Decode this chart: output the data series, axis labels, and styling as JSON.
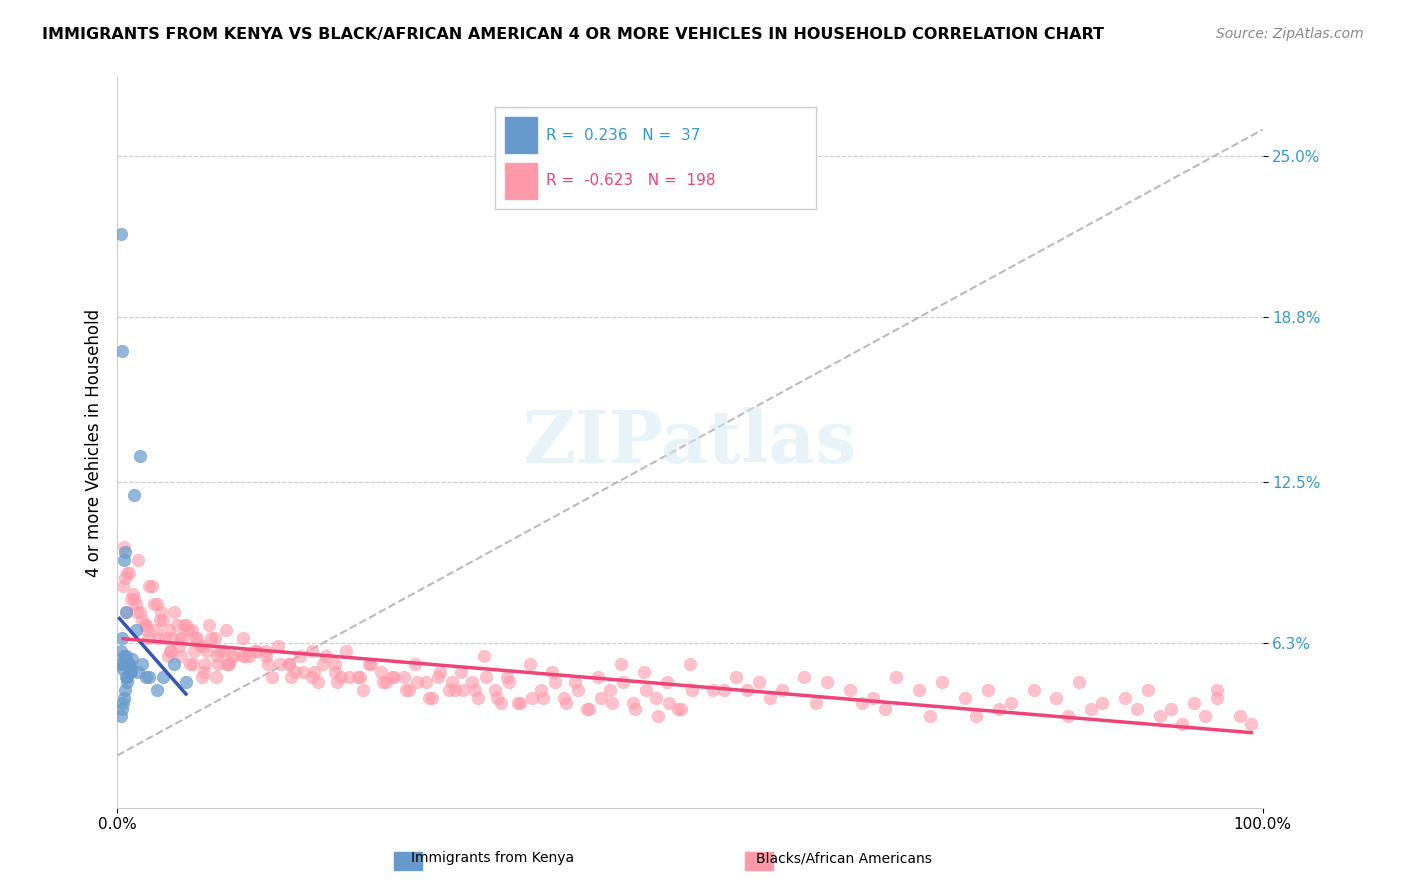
{
  "title": "IMMIGRANTS FROM KENYA VS BLACK/AFRICAN AMERICAN 4 OR MORE VEHICLES IN HOUSEHOLD CORRELATION CHART",
  "source": "Source: ZipAtlas.com",
  "ylabel": "4 or more Vehicles in Household",
  "xlabel": "",
  "xlim": [
    0,
    100
  ],
  "ylim": [
    0,
    28
  ],
  "yticks": [
    0,
    6.3,
    12.5,
    18.8,
    25.0
  ],
  "ytick_labels": [
    "",
    "6.3%",
    "12.5%",
    "18.8%",
    "25.0%"
  ],
  "xtick_labels": [
    "0.0%",
    "100.0%"
  ],
  "blue_R": 0.236,
  "blue_N": 37,
  "pink_R": -0.623,
  "pink_N": 198,
  "blue_color": "#6699CC",
  "pink_color": "#FF99AA",
  "blue_line_color": "#3355BB",
  "pink_line_color": "#EE4477",
  "gray_line_color": "#BBBBBB",
  "watermark": "ZIPatlas",
  "background_color": "#FFFFFF",
  "legend_label_blue": "Immigrants from Kenya",
  "legend_label_pink": "Blacks/African Americans",
  "blue_scatter_x": [
    0.5,
    0.8,
    1.2,
    0.3,
    0.4,
    0.6,
    0.7,
    0.9,
    1.0,
    1.5,
    2.0,
    2.5,
    0.2,
    0.3,
    0.4,
    0.5,
    0.6,
    0.7,
    0.8,
    0.9,
    1.0,
    1.1,
    1.3,
    1.6,
    1.8,
    2.2,
    0.3,
    0.4,
    0.5,
    2.8,
    0.6,
    0.8,
    1.2,
    3.5,
    4.0,
    5.0,
    6.0
  ],
  "blue_scatter_y": [
    5.5,
    5.8,
    5.2,
    22.0,
    17.5,
    9.5,
    9.8,
    5.0,
    5.5,
    12.0,
    13.5,
    5.0,
    5.5,
    6.0,
    6.5,
    5.3,
    5.8,
    4.5,
    5.0,
    4.8,
    5.5,
    5.2,
    5.7,
    6.8,
    5.2,
    5.5,
    3.5,
    3.8,
    4.0,
    5.0,
    4.2,
    7.5,
    5.3,
    4.5,
    5.0,
    5.5,
    4.8
  ],
  "pink_scatter_x": [
    0.5,
    1.0,
    1.5,
    2.0,
    2.5,
    3.0,
    3.5,
    4.0,
    4.5,
    5.0,
    5.5,
    6.0,
    6.5,
    7.0,
    7.5,
    8.0,
    8.5,
    9.0,
    9.5,
    10.0,
    11.0,
    12.0,
    13.0,
    14.0,
    15.0,
    16.0,
    17.0,
    18.0,
    19.0,
    20.0,
    22.0,
    24.0,
    26.0,
    28.0,
    30.0,
    32.0,
    34.0,
    36.0,
    38.0,
    40.0,
    42.0,
    44.0,
    46.0,
    48.0,
    50.0,
    52.0,
    54.0,
    56.0,
    58.0,
    60.0,
    62.0,
    64.0,
    66.0,
    68.0,
    70.0,
    72.0,
    74.0,
    76.0,
    78.0,
    80.0,
    82.0,
    84.0,
    86.0,
    88.0,
    90.0,
    92.0,
    94.0,
    96.0,
    98.0,
    0.8,
    1.2,
    2.2,
    3.2,
    4.2,
    5.2,
    6.2,
    7.2,
    8.2,
    9.2,
    10.2,
    12.2,
    14.2,
    16.2,
    18.2,
    20.2,
    22.2,
    24.2,
    26.2,
    28.2,
    30.2,
    32.2,
    34.2,
    36.2,
    38.2,
    40.2,
    42.2,
    44.2,
    46.2,
    48.2,
    50.2,
    1.8,
    2.8,
    3.8,
    4.8,
    5.8,
    6.8,
    7.8,
    8.8,
    9.8,
    11.0,
    13.0,
    15.0,
    17.0,
    19.0,
    21.0,
    23.0,
    25.0,
    27.0,
    29.0,
    31.0,
    33.0,
    35.0,
    37.0,
    39.0,
    41.0,
    43.0,
    45.0,
    47.0,
    49.0,
    55.0,
    65.0,
    75.0,
    85.0,
    95.0,
    0.6,
    1.4,
    2.4,
    3.4,
    4.4,
    5.4,
    6.4,
    7.4,
    0.9,
    1.6,
    2.6,
    3.6,
    4.6,
    5.6,
    6.6,
    7.6,
    8.6,
    9.6,
    11.5,
    13.5,
    15.5,
    17.5,
    19.5,
    21.5,
    23.5,
    25.5,
    27.5,
    29.5,
    31.5,
    33.5,
    0.7,
    1.7,
    2.7,
    3.7,
    4.7,
    5.7,
    6.7,
    7.7,
    8.7,
    9.7,
    11.2,
    13.2,
    15.2,
    17.2,
    19.2,
    21.2,
    23.2,
    25.2,
    27.2,
    29.2,
    31.2,
    33.2,
    35.2,
    37.2,
    39.2,
    41.2,
    43.2,
    45.2,
    47.2,
    49.2,
    53.0,
    57.0,
    61.0,
    67.0,
    71.0,
    77.0,
    83.0,
    89.0,
    91.0,
    93.0,
    96.0,
    99.0
  ],
  "pink_scatter_y": [
    8.5,
    9.0,
    8.0,
    7.5,
    7.0,
    8.5,
    7.8,
    7.2,
    6.8,
    7.5,
    6.5,
    7.0,
    6.8,
    6.5,
    6.2,
    7.0,
    6.5,
    6.0,
    6.8,
    5.8,
    6.5,
    6.0,
    5.8,
    6.2,
    5.5,
    5.8,
    6.0,
    5.5,
    5.2,
    6.0,
    5.5,
    5.0,
    5.5,
    5.0,
    5.2,
    5.8,
    5.0,
    5.5,
    5.2,
    4.8,
    5.0,
    5.5,
    5.2,
    4.8,
    5.5,
    4.5,
    5.0,
    4.8,
    4.5,
    5.0,
    4.8,
    4.5,
    4.2,
    5.0,
    4.5,
    4.8,
    4.2,
    4.5,
    4.0,
    4.5,
    4.2,
    4.8,
    4.0,
    4.2,
    4.5,
    3.8,
    4.0,
    4.5,
    3.5,
    7.5,
    8.0,
    7.2,
    7.8,
    6.5,
    7.0,
    6.8,
    6.2,
    6.5,
    6.0,
    5.8,
    6.0,
    5.5,
    5.2,
    5.8,
    5.0,
    5.5,
    5.0,
    4.8,
    5.2,
    4.5,
    5.0,
    4.8,
    4.2,
    4.8,
    4.5,
    4.2,
    4.8,
    4.5,
    4.0,
    4.5,
    9.5,
    8.5,
    7.5,
    6.5,
    7.0,
    6.5,
    6.0,
    5.5,
    5.5,
    5.8,
    6.0,
    5.5,
    5.0,
    5.5,
    5.0,
    5.2,
    5.0,
    4.8,
    4.5,
    4.8,
    4.5,
    4.0,
    4.5,
    4.2,
    3.8,
    4.5,
    4.0,
    4.2,
    3.8,
    4.5,
    4.0,
    3.5,
    3.8,
    3.5,
    10.0,
    8.2,
    7.0,
    6.8,
    5.8,
    6.2,
    5.5,
    5.0,
    9.0,
    7.8,
    6.8,
    6.5,
    6.0,
    5.8,
    5.5,
    5.2,
    5.0,
    5.5,
    5.8,
    5.0,
    5.2,
    4.8,
    5.0,
    4.5,
    4.8,
    4.5,
    4.2,
    4.5,
    4.2,
    4.0,
    8.8,
    7.5,
    6.5,
    7.2,
    6.0,
    6.5,
    6.0,
    5.5,
    5.8,
    5.5,
    5.8,
    5.5,
    5.0,
    5.2,
    4.8,
    5.0,
    4.8,
    4.5,
    4.2,
    4.8,
    4.5,
    4.2,
    4.0,
    4.2,
    4.0,
    3.8,
    4.0,
    3.8,
    3.5,
    3.8,
    4.5,
    4.2,
    4.0,
    3.8,
    3.5,
    3.8,
    3.5,
    3.8,
    3.5,
    3.2,
    4.2,
    3.2
  ]
}
